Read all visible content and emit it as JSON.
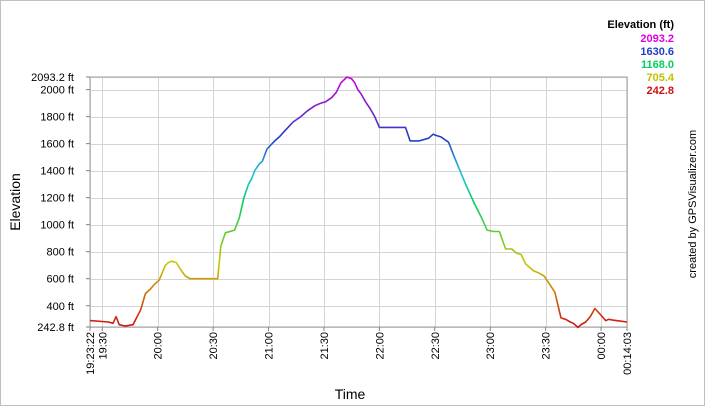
{
  "chart_data": {
    "type": "line",
    "xlabel": "Time",
    "ylabel": "Elevation",
    "legend_title": "Elevation (ft)",
    "legend_position": "top-right",
    "legend_values": [
      {
        "label": "2093.2",
        "color": "#e000e0"
      },
      {
        "label": "1630.6",
        "color": "#2040c0"
      },
      {
        "label": "1168.0",
        "color": "#00d060"
      },
      {
        "label": "705.4",
        "color": "#c0c000"
      },
      {
        "label": "242.8",
        "color": "#d01010"
      }
    ],
    "watermark": "created by GPSVisualizer.com",
    "grid": true,
    "xlim": [
      69802,
      87243
    ],
    "ylim": [
      242.8,
      2093.2
    ],
    "y_ticks": [
      {
        "value": 242.8,
        "label": "242.8 ft"
      },
      {
        "value": 400,
        "label": "400 ft"
      },
      {
        "value": 600,
        "label": "600 ft"
      },
      {
        "value": 800,
        "label": "800 ft"
      },
      {
        "value": 1000,
        "label": "1000 ft"
      },
      {
        "value": 1200,
        "label": "1200 ft"
      },
      {
        "value": 1400,
        "label": "1400 ft"
      },
      {
        "value": 1600,
        "label": "1600 ft"
      },
      {
        "value": 1800,
        "label": "1800 ft"
      },
      {
        "value": 2000,
        "label": "2000 ft"
      },
      {
        "value": 2093.2,
        "label": "2093.2 ft"
      }
    ],
    "x_ticks": [
      {
        "value": 69802,
        "label": "19:23:22"
      },
      {
        "value": 70200,
        "label": "19:30"
      },
      {
        "value": 72000,
        "label": "20:00"
      },
      {
        "value": 73800,
        "label": "20:30"
      },
      {
        "value": 75600,
        "label": "21:00"
      },
      {
        "value": 77400,
        "label": "21:30"
      },
      {
        "value": 79200,
        "label": "22:00"
      },
      {
        "value": 81000,
        "label": "22:30"
      },
      {
        "value": 82800,
        "label": "23:00"
      },
      {
        "value": 84600,
        "label": "23:30"
      },
      {
        "value": 86400,
        "label": "00:00"
      },
      {
        "value": 87243,
        "label": "00:14:03"
      }
    ],
    "series": [
      {
        "x": [
          69802,
          70400,
          70550,
          70650,
          70750,
          70850,
          70950,
          71200,
          71450,
          71600,
          71700,
          71750,
          71900,
          72050,
          72250,
          72350,
          72450,
          72600,
          72800,
          72900,
          73050,
          73200,
          73400,
          73800,
          73950,
          74050,
          74200,
          74500,
          74650,
          74800,
          74950,
          75050,
          75150,
          75300,
          75400,
          75550,
          75800,
          75950,
          76150,
          76400,
          76650,
          76850,
          77100,
          77300,
          77450,
          77650,
          77800,
          77950,
          78150,
          78300,
          78400,
          78500,
          78600,
          78750,
          78900,
          79050,
          79200,
          79400,
          79500,
          79700,
          80050,
          80200,
          80300,
          80500,
          80800,
          80950,
          81050,
          81200,
          81450,
          81600,
          81800,
          82000,
          82100,
          82300,
          82500,
          82700,
          82900,
          83100,
          83300,
          83500,
          83650,
          83800,
          83950,
          84200,
          84400,
          84550,
          84700,
          84900,
          85100,
          85250,
          85400,
          85500,
          85550,
          85650,
          85750,
          85900,
          86050,
          86200,
          86400,
          86550,
          86650,
          86750,
          86900,
          87243
        ],
        "y": [
          290,
          280,
          270,
          320,
          260,
          255,
          250,
          260,
          370,
          490,
          510,
          520,
          560,
          590,
          700,
          720,
          730,
          720,
          650,
          620,
          600,
          600,
          600,
          600,
          600,
          840,
          940,
          960,
          1050,
          1200,
          1300,
          1340,
          1400,
          1450,
          1470,
          1560,
          1620,
          1650,
          1700,
          1760,
          1800,
          1840,
          1880,
          1900,
          1910,
          1940,
          1980,
          2050,
          2093,
          2080,
          2050,
          2000,
          1970,
          1910,
          1860,
          1800,
          1720,
          1720,
          1720,
          1720,
          1720,
          1620,
          1620,
          1620,
          1640,
          1670,
          1660,
          1650,
          1610,
          1520,
          1410,
          1300,
          1250,
          1150,
          1060,
          960,
          950,
          950,
          820,
          820,
          790,
          780,
          710,
          660,
          640,
          620,
          570,
          500,
          310,
          300,
          280,
          270,
          260,
          240,
          260,
          280,
          320,
          380,
          330,
          290,
          300,
          295,
          290,
          280
        ]
      }
    ]
  }
}
